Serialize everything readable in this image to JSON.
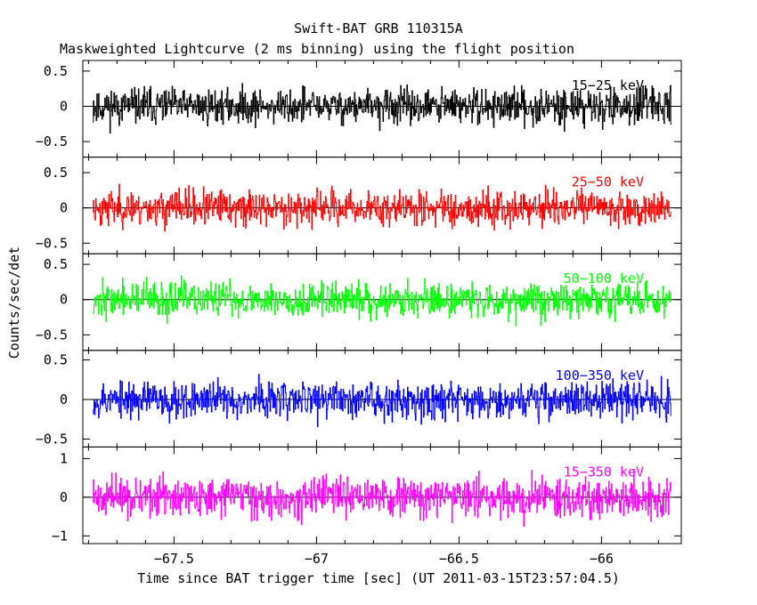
{
  "chart_data": {
    "type": "line",
    "title": "Swift-BAT GRB 110315A",
    "subtitle": "Maskweighted Lightcurve (2 ms binning) using the flight position",
    "xlabel": "Time since BAT trigger time [sec] (UT 2011-03-15T23:57:04.5)",
    "ylabel": "Counts/sec/det",
    "xlim": [
      -67.82,
      -65.72
    ],
    "x_data_range": [
      -67.785,
      -65.755
    ],
    "bin_width": 0.002,
    "xticks": [
      -67.5,
      -67,
      -66.5,
      -66
    ],
    "xtick_labels": [
      "−67.5",
      "−67",
      "−66.5",
      "−66"
    ],
    "panels": [
      {
        "band": "15−25 keV",
        "color": "#000000",
        "ylim": [
          -0.72,
          0.65
        ],
        "yticks": [
          -0.5,
          0,
          0.5
        ],
        "ytick_labels": [
          "−0.5",
          "0",
          "0.5"
        ],
        "noise_amplitude": 0.17,
        "seed": 11
      },
      {
        "band": "25−50 keV",
        "color": "#ff0000",
        "ylim": [
          -0.65,
          0.72
        ],
        "yticks": [
          -0.5,
          0,
          0.5
        ],
        "ytick_labels": [
          "−0.5",
          "0",
          "0.5"
        ],
        "noise_amplitude": 0.17,
        "seed": 23
      },
      {
        "band": "50−100 keV",
        "color": "#00ff00",
        "ylim": [
          -0.72,
          0.65
        ],
        "yticks": [
          -0.5,
          0,
          0.5
        ],
        "ytick_labels": [
          "−0.5",
          "0",
          "0.5"
        ],
        "noise_amplitude": 0.17,
        "seed": 37
      },
      {
        "band": "100−350 keV",
        "color": "#0000ff",
        "ylim": [
          -0.6,
          0.62
        ],
        "yticks": [
          -0.5,
          0,
          0.5
        ],
        "ytick_labels": [
          "−0.5",
          "0",
          "0.5"
        ],
        "noise_amplitude": 0.16,
        "seed": 53
      },
      {
        "band": "15−350 keV",
        "color": "#ff00ff",
        "ylim": [
          -1.2,
          1.3
        ],
        "yticks": [
          -1,
          0,
          1
        ],
        "ytick_labels": [
          "−1",
          "0",
          "1"
        ],
        "noise_amplitude": 0.34,
        "seed": 71
      }
    ]
  }
}
